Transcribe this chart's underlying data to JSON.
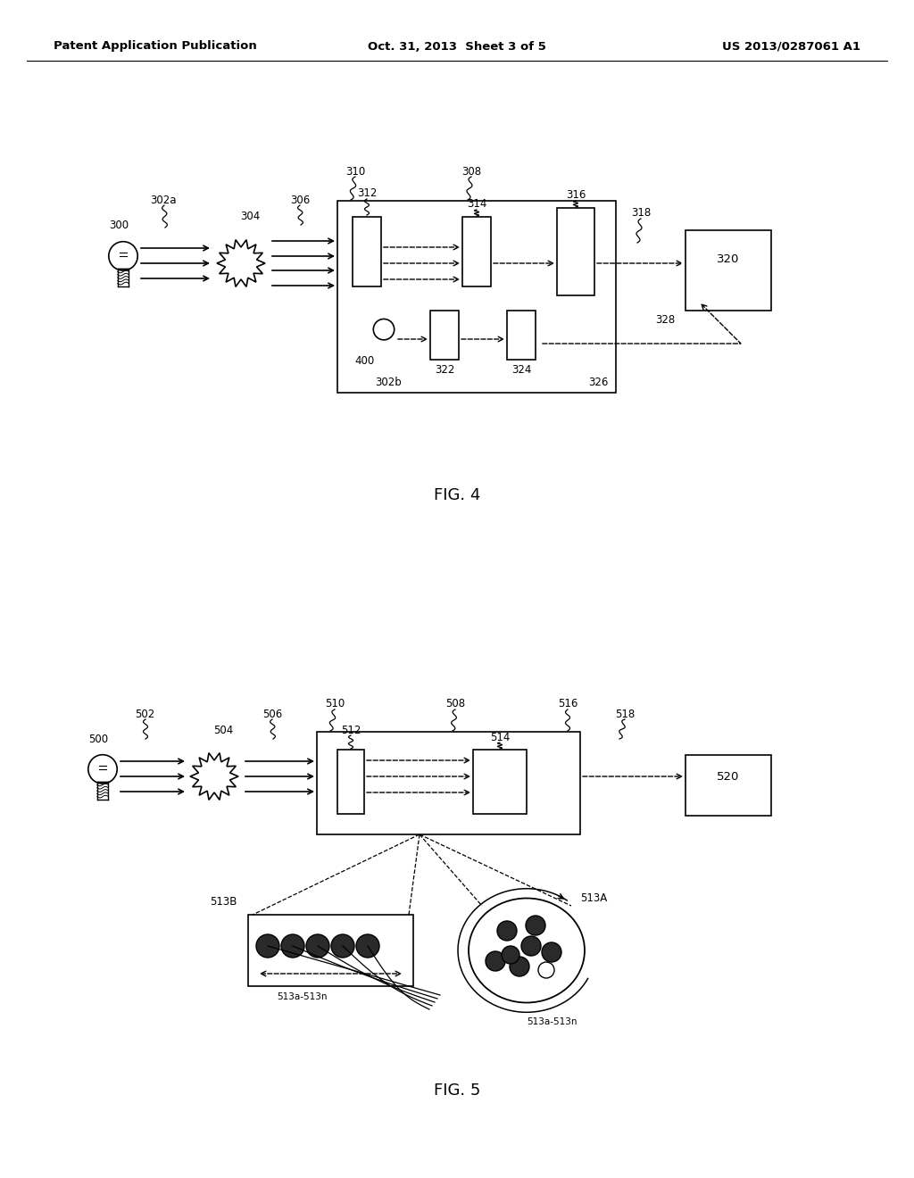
{
  "bg_color": "#ffffff",
  "header_left": "Patent Application Publication",
  "header_center": "Oct. 31, 2013  Sheet 3 of 5",
  "header_right": "US 2013/0287061 A1",
  "fig4_label": "FIG. 4",
  "fig5_label": "FIG. 5"
}
